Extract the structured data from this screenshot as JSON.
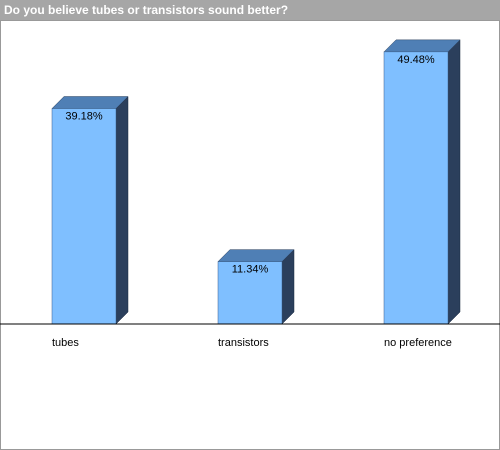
{
  "chart_data": {
    "type": "bar3d",
    "title": "Do you believe tubes or transistors sound better?",
    "categories": [
      "tubes",
      "transistors",
      "no preference"
    ],
    "values": [
      39.18,
      11.34,
      49.48
    ],
    "value_labels": [
      "39.18%",
      "11.34%",
      "49.48%"
    ],
    "color": "#7fbfff"
  }
}
